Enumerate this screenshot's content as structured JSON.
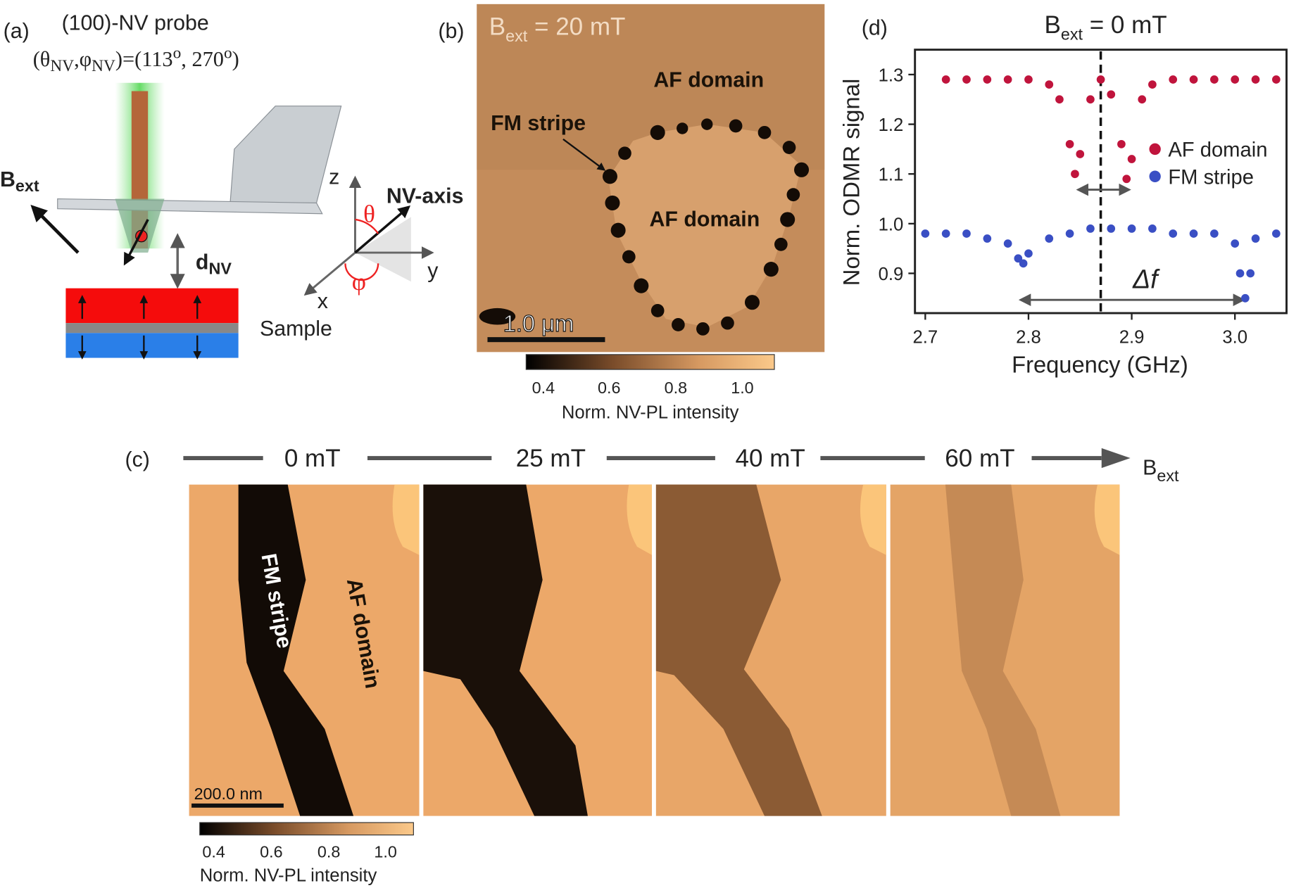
{
  "panel_a": {
    "label": "(a)",
    "probe": "(100)-NV probe",
    "angles": [
      "(θ",
      "NV",
      ",φ",
      "NV",
      ")=(113",
      "o",
      ", 270",
      "o",
      ")"
    ],
    "b_ext": [
      "B",
      "ext"
    ],
    "d_nv": [
      "d",
      "NV"
    ],
    "axes": {
      "z": "z",
      "y": "y",
      "x": "x",
      "theta": "θ",
      "phi": "φ",
      "nv_axis": "NV-axis"
    },
    "sample": "Sample"
  },
  "panel_b": {
    "label": "(b)",
    "field": [
      "B",
      "ext",
      " = 20 mT"
    ],
    "af_top": "AF domain",
    "fm": "FM stripe",
    "af_center": "AF domain",
    "scale_bar": "1.0 μm",
    "colorbar": {
      "ticks": [
        "0.4",
        "0.6",
        "0.8",
        "1.0"
      ],
      "label": "Norm. NV-PL intensity"
    }
  },
  "panel_c": {
    "label": "(c)",
    "fields": [
      "0 mT",
      "25 mT",
      "40 mT",
      "60 mT"
    ],
    "b_ext": [
      "B",
      "ext"
    ],
    "fm": "FM stripe",
    "af": "AF domain",
    "scale_bar": "200.0 nm",
    "colorbar": {
      "ticks": [
        "0.4",
        "0.6",
        "0.8",
        "1.0"
      ],
      "label": "Norm. NV-PL intensity"
    }
  },
  "chart_data": {
    "type": "scatter",
    "panel_label": "(d)",
    "title": [
      "B",
      "ext",
      " = 0 mT"
    ],
    "x_label": "Frequency (GHz)",
    "y_label": "Norm. ODMR signal",
    "annotation": "Δf",
    "series": [
      {
        "name": "AF domain",
        "color": "#c0143c",
        "x": [
          2.72,
          2.74,
          2.76,
          2.78,
          2.8,
          2.82,
          2.83,
          2.84,
          2.845,
          2.85,
          2.86,
          2.87,
          2.88,
          2.89,
          2.895,
          2.9,
          2.91,
          2.92,
          2.94,
          2.96,
          2.98,
          3.0,
          3.02,
          3.04
        ],
        "values": [
          1.29,
          1.29,
          1.29,
          1.29,
          1.29,
          1.28,
          1.25,
          1.16,
          1.1,
          1.14,
          1.25,
          1.29,
          1.26,
          1.16,
          1.09,
          1.13,
          1.25,
          1.28,
          1.29,
          1.29,
          1.29,
          1.29,
          1.29,
          1.29
        ]
      },
      {
        "name": "FM stripe",
        "color": "#3a4fc4",
        "x": [
          2.7,
          2.72,
          2.74,
          2.76,
          2.78,
          2.79,
          2.795,
          2.8,
          2.82,
          2.84,
          2.86,
          2.88,
          2.9,
          2.92,
          2.94,
          2.96,
          2.98,
          3.0,
          3.005,
          3.01,
          3.015,
          3.02,
          3.04
        ],
        "values": [
          0.98,
          0.98,
          0.98,
          0.97,
          0.96,
          0.93,
          0.92,
          0.94,
          0.97,
          0.98,
          0.99,
          0.99,
          0.99,
          0.99,
          0.98,
          0.98,
          0.98,
          0.96,
          0.9,
          0.85,
          0.9,
          0.97,
          0.98
        ]
      }
    ],
    "xlim": [
      2.69,
      3.05
    ],
    "ylim": [
      0.82,
      1.35
    ],
    "xticks": [
      2.7,
      2.8,
      2.9,
      {
        "value": 3.0,
        "label": "3.0"
      }
    ],
    "yticks": [
      {
        "value": 0.9,
        "label": "0.9"
      },
      {
        "value": 1.0,
        "label": "1.0"
      },
      1.1,
      1.2,
      1.3
    ],
    "legend": "right"
  }
}
